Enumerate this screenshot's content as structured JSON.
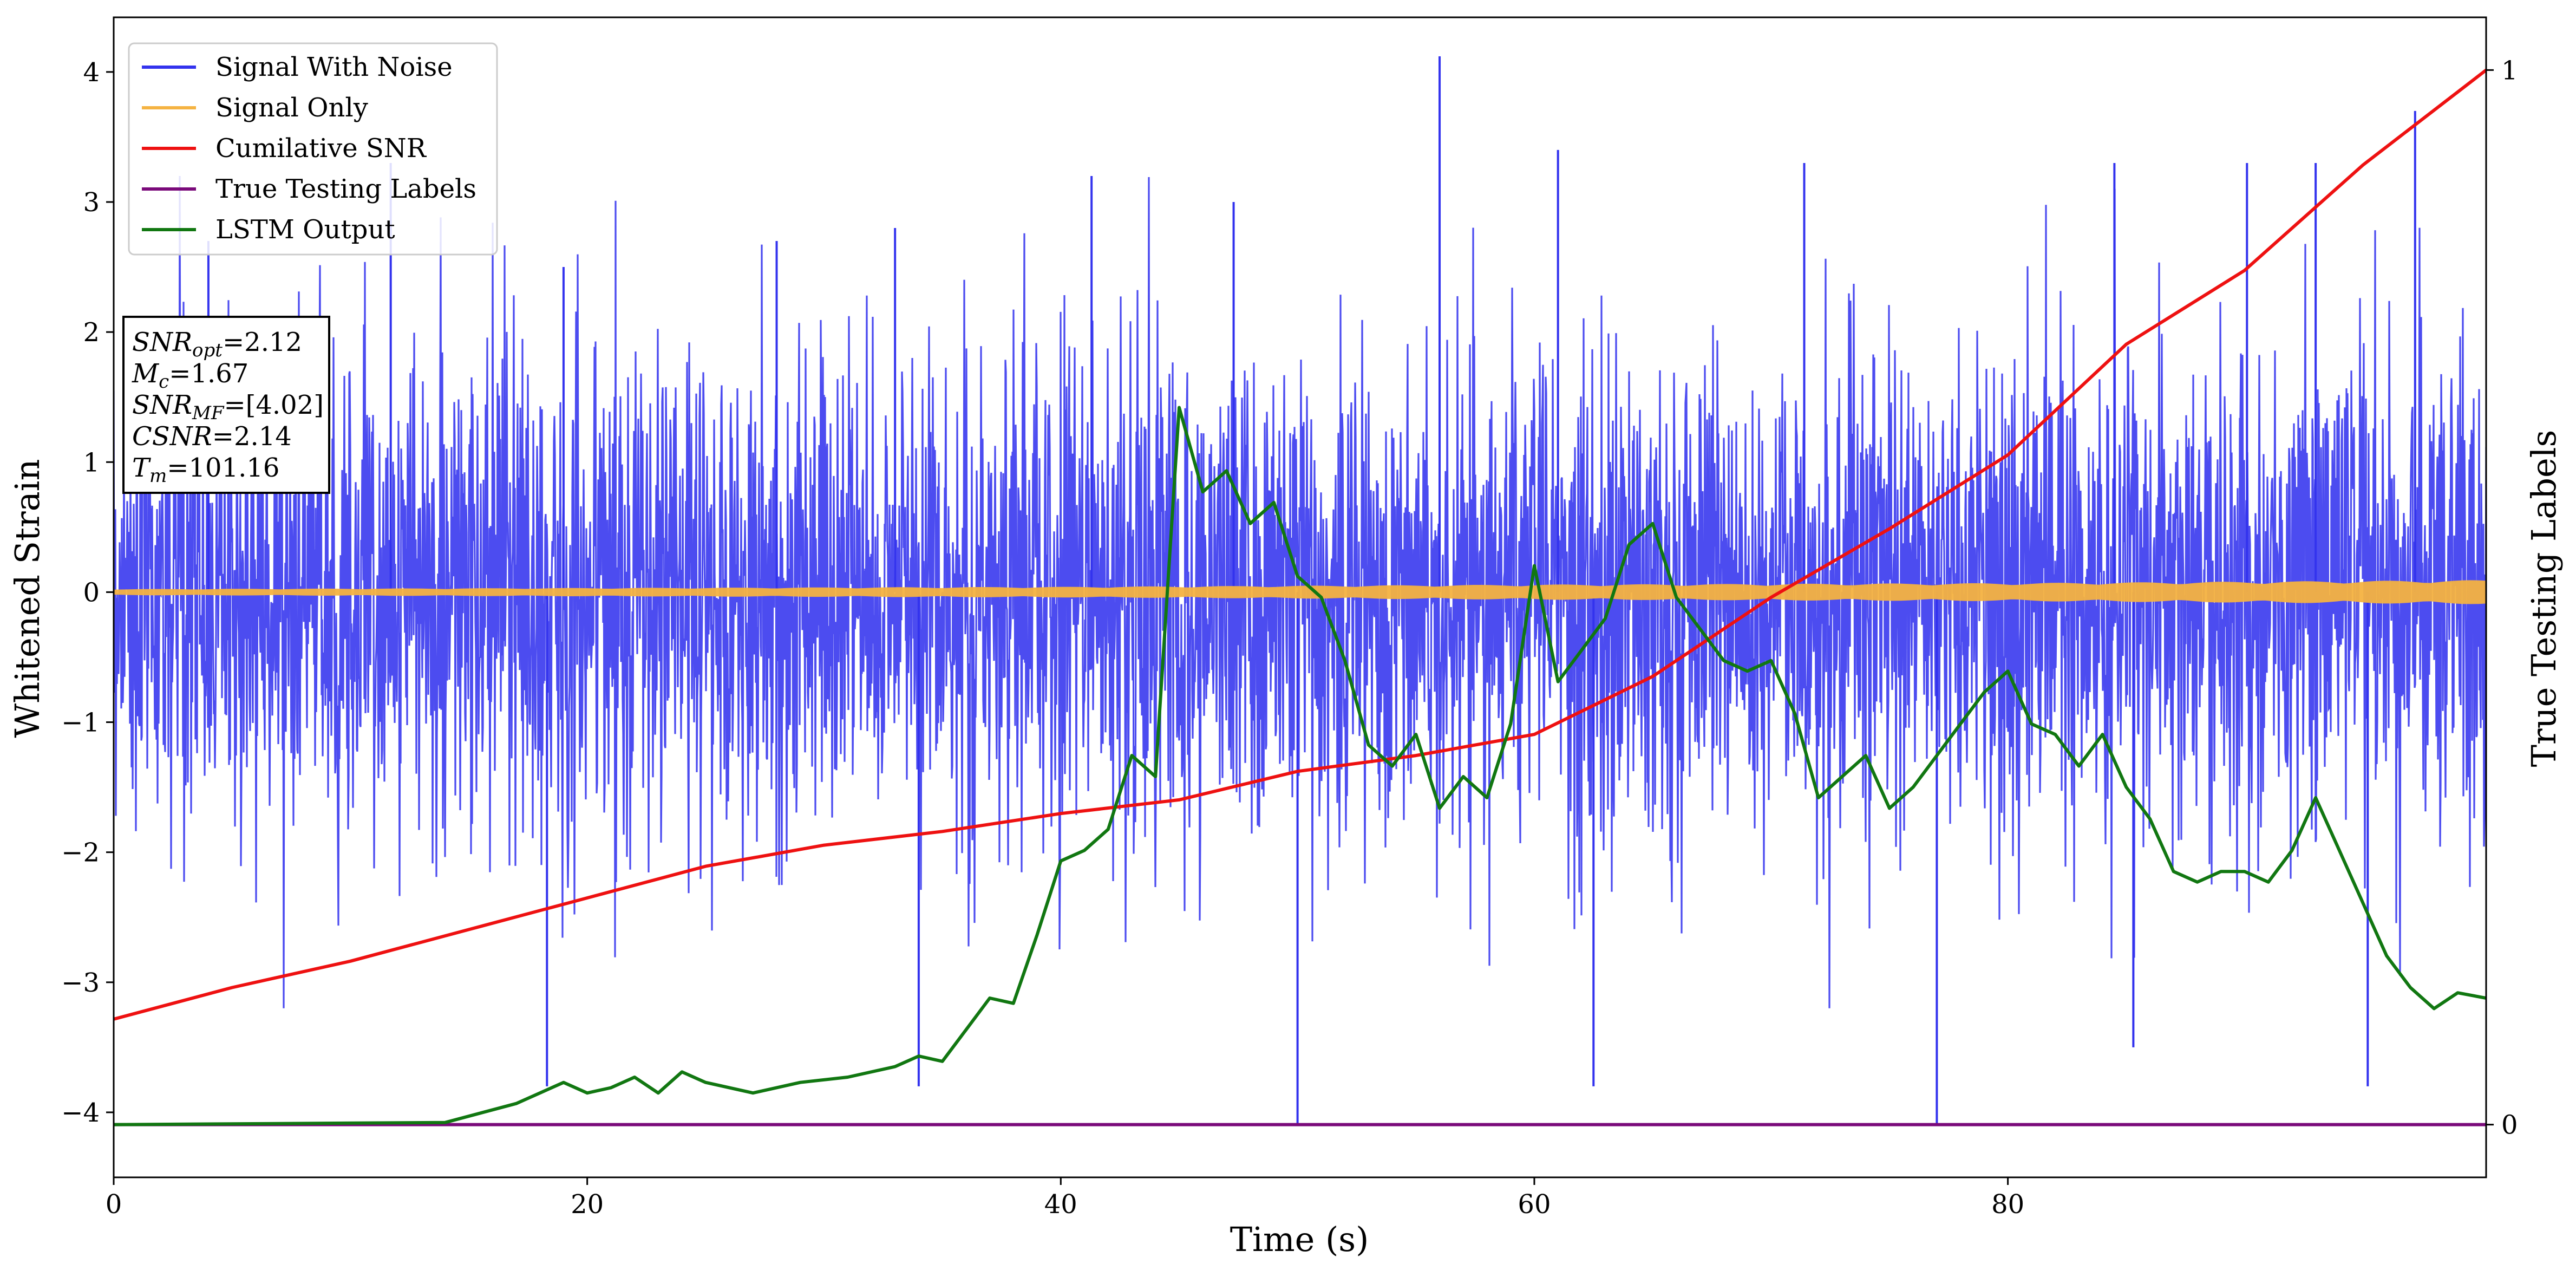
{
  "chart_data": {
    "type": "line",
    "xlabel": "Time (s)",
    "ylabel": "Whitened Strain",
    "ylabel_right": "True Testing Labels",
    "xlim": [
      0,
      100.2
    ],
    "ylim": [
      -4.5,
      4.42
    ],
    "ylim_right": [
      -0.05,
      1.05
    ],
    "x_ticks": [
      "0",
      "20",
      "40",
      "60",
      "80"
    ],
    "y_ticks": [
      "4",
      "3",
      "2",
      "1",
      "0",
      "−1",
      "−2",
      "−3",
      "−4"
    ],
    "y_ticks_right": [
      "1",
      "0"
    ],
    "grid": false,
    "legend_position": "top-left",
    "legend": [
      {
        "label": "Signal With Noise",
        "color": "#3333ee"
      },
      {
        "label": "Signal Only",
        "color": "#f5b342"
      },
      {
        "label": "Cumilative SNR",
        "color": "#ee1111"
      },
      {
        "label": "True Testing Labels",
        "color": "#7a0a7a"
      },
      {
        "label": "LSTM Output",
        "color": "#117711"
      }
    ],
    "annotation_lines": [
      "SNR_opt=2.12",
      "M_c=1.67",
      "SNR_MF=[4.02]",
      "CSNR=2.14",
      "T_m=101.16"
    ],
    "series": [
      {
        "name": "Signal With Noise",
        "axis": "left",
        "style": "noise",
        "envelope": {
          "upper_typical": 1.6,
          "lower_typical": -1.6
        },
        "spikes": [
          [
            4.0,
            2.7
          ],
          [
            11.7,
            3.3
          ],
          [
            19.0,
            2.5
          ],
          [
            28.0,
            2.7
          ],
          [
            33.0,
            2.8
          ],
          [
            41.3,
            3.2
          ],
          [
            47.3,
            3.0
          ],
          [
            56.0,
            4.12
          ],
          [
            61.0,
            3.4
          ],
          [
            71.4,
            3.3
          ],
          [
            84.5,
            3.3
          ],
          [
            90.1,
            3.3
          ],
          [
            93.0,
            3.3
          ],
          [
            97.2,
            3.7
          ],
          [
            18.3,
            -3.8
          ],
          [
            34.0,
            -3.8
          ],
          [
            50.0,
            -4.1
          ],
          [
            62.5,
            -3.8
          ],
          [
            77.0,
            -4.1
          ],
          [
            85.3,
            -3.5
          ],
          [
            95.2,
            -3.8
          ]
        ]
      },
      {
        "name": "Signal Only",
        "axis": "left",
        "style": "band",
        "points": [
          [
            0,
            0.015
          ],
          [
            40,
            0.03
          ],
          [
            60,
            0.045
          ],
          [
            80,
            0.055
          ],
          [
            100.2,
            0.075
          ]
        ]
      },
      {
        "name": "Cumilative SNR",
        "axis": "right",
        "points": [
          [
            0,
            0.1
          ],
          [
            5,
            0.13
          ],
          [
            10,
            0.155
          ],
          [
            15,
            0.185
          ],
          [
            20,
            0.215
          ],
          [
            25,
            0.245
          ],
          [
            30,
            0.265
          ],
          [
            35,
            0.278
          ],
          [
            40,
            0.295
          ],
          [
            45,
            0.308
          ],
          [
            50,
            0.335
          ],
          [
            55,
            0.35
          ],
          [
            60,
            0.37
          ],
          [
            65,
            0.425
          ],
          [
            70,
            0.5
          ],
          [
            75,
            0.565
          ],
          [
            80,
            0.635
          ],
          [
            85,
            0.74
          ],
          [
            90,
            0.81
          ],
          [
            95,
            0.91
          ],
          [
            100.2,
            1.0
          ]
        ]
      },
      {
        "name": "True Testing Labels",
        "axis": "right",
        "points": [
          [
            0,
            0
          ],
          [
            100.2,
            0
          ]
        ]
      },
      {
        "name": "LSTM Output",
        "axis": "right",
        "points": [
          [
            0,
            0
          ],
          [
            14,
            0.002
          ],
          [
            17,
            0.02
          ],
          [
            18,
            0.03
          ],
          [
            19,
            0.04
          ],
          [
            20,
            0.03
          ],
          [
            21,
            0.035
          ],
          [
            22,
            0.045
          ],
          [
            23,
            0.03
          ],
          [
            24,
            0.05
          ],
          [
            25,
            0.04
          ],
          [
            27,
            0.03
          ],
          [
            29,
            0.04
          ],
          [
            31,
            0.045
          ],
          [
            33,
            0.055
          ],
          [
            34,
            0.065
          ],
          [
            35,
            0.06
          ],
          [
            36,
            0.09
          ],
          [
            37,
            0.12
          ],
          [
            38,
            0.115
          ],
          [
            39,
            0.18
          ],
          [
            40,
            0.25
          ],
          [
            41,
            0.26
          ],
          [
            42,
            0.28
          ],
          [
            43,
            0.35
          ],
          [
            44,
            0.33
          ],
          [
            45,
            0.68
          ],
          [
            46,
            0.6
          ],
          [
            47,
            0.62
          ],
          [
            48,
            0.57
          ],
          [
            49,
            0.59
          ],
          [
            50,
            0.52
          ],
          [
            51,
            0.5
          ],
          [
            52,
            0.44
          ],
          [
            53,
            0.36
          ],
          [
            54,
            0.34
          ],
          [
            55,
            0.37
          ],
          [
            56,
            0.3
          ],
          [
            57,
            0.33
          ],
          [
            58,
            0.31
          ],
          [
            59,
            0.38
          ],
          [
            60,
            0.53
          ],
          [
            61,
            0.42
          ],
          [
            62,
            0.45
          ],
          [
            63,
            0.48
          ],
          [
            64,
            0.55
          ],
          [
            65,
            0.57
          ],
          [
            66,
            0.5
          ],
          [
            67,
            0.47
          ],
          [
            68,
            0.44
          ],
          [
            69,
            0.43
          ],
          [
            70,
            0.44
          ],
          [
            71,
            0.39
          ],
          [
            72,
            0.31
          ],
          [
            73,
            0.33
          ],
          [
            74,
            0.35
          ],
          [
            75,
            0.3
          ],
          [
            76,
            0.32
          ],
          [
            77,
            0.35
          ],
          [
            78,
            0.38
          ],
          [
            79,
            0.41
          ],
          [
            80,
            0.43
          ],
          [
            81,
            0.38
          ],
          [
            82,
            0.37
          ],
          [
            83,
            0.34
          ],
          [
            84,
            0.37
          ],
          [
            85,
            0.32
          ],
          [
            86,
            0.29
          ],
          [
            87,
            0.24
          ],
          [
            88,
            0.23
          ],
          [
            89,
            0.24
          ],
          [
            90,
            0.24
          ],
          [
            91,
            0.23
          ],
          [
            92,
            0.26
          ],
          [
            93,
            0.31
          ],
          [
            94,
            0.26
          ],
          [
            95,
            0.21
          ],
          [
            96,
            0.16
          ],
          [
            97,
            0.13
          ],
          [
            98,
            0.11
          ],
          [
            99,
            0.125
          ],
          [
            100.2,
            0.12
          ]
        ]
      }
    ]
  }
}
